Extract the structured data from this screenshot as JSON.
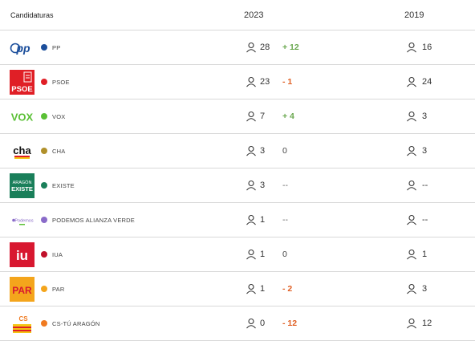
{
  "header": {
    "candidaturas": "Candidaturas",
    "y2023": "2023",
    "y2019": "2019"
  },
  "rows": [
    {
      "name": "PP",
      "dot": "#1b4e9b",
      "seats2023": "28",
      "delta": "+ 12",
      "deltaType": "pos",
      "seats2019": "16",
      "logo": "pp-logo"
    },
    {
      "name": "PSOE",
      "dot": "#e01f26",
      "seats2023": "23",
      "delta": "- 1",
      "deltaType": "neg",
      "seats2019": "24",
      "logo": "psoe-logo"
    },
    {
      "name": "VOX",
      "dot": "#5ac035",
      "seats2023": "7",
      "delta": "+ 4",
      "deltaType": "pos",
      "seats2019": "3",
      "logo": "vox-logo"
    },
    {
      "name": "CHA",
      "dot": "#b0902a",
      "seats2023": "3",
      "delta": "0",
      "deltaType": "zero",
      "seats2019": "3",
      "logo": "cha-logo"
    },
    {
      "name": "EXISTE",
      "dot": "#1a7f5a",
      "seats2023": "3",
      "delta": "--",
      "deltaType": "none",
      "seats2019": "--",
      "logo": "existe-logo"
    },
    {
      "name": "PODEMOS ALIANZA VERDE",
      "dot": "#8a6bc9",
      "seats2023": "1",
      "delta": "--",
      "deltaType": "none",
      "seats2019": "--",
      "logo": "podemos-logo"
    },
    {
      "name": "IUA",
      "dot": "#c0102a",
      "seats2023": "1",
      "delta": "0",
      "deltaType": "zero",
      "seats2019": "1",
      "logo": "iu-logo"
    },
    {
      "name": "PAR",
      "dot": "#f4a51c",
      "seats2023": "1",
      "delta": "- 2",
      "deltaType": "neg",
      "seats2019": "3",
      "logo": "par-logo"
    },
    {
      "name": "CS-TÚ ARAGÓN",
      "dot": "#f07a20",
      "seats2023": "0",
      "delta": "- 12",
      "deltaType": "neg",
      "seats2019": "12",
      "logo": "cs-logo"
    }
  ],
  "logos": {
    "pp": "pp",
    "psoe": "PSOE",
    "vox": "VOX",
    "cha": "cha",
    "existe_top": "ARAGÓN",
    "existe_bottom": "EXISTE",
    "podemos": "Podemos",
    "iu": "iu",
    "par": "PAR",
    "cs": "CS"
  }
}
